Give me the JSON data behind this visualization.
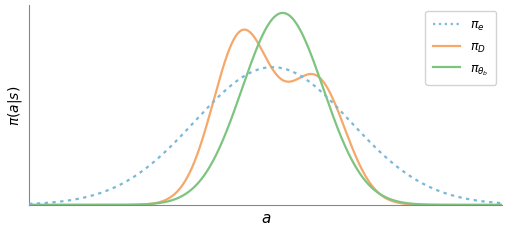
{
  "xlabel": "$a$",
  "ylabel": "$\\pi(a|s)$",
  "xlim": [
    -6,
    8
  ],
  "ylim": [
    0,
    0.48
  ],
  "legend_labels": [
    "$\\pi_e$",
    "$\\pi_D$",
    "$\\pi_{\\theta_b}$"
  ],
  "colors": {
    "pi_e": "#7ab8d9",
    "pi_D": "#f5a86a",
    "pi_theta": "#7dc47e"
  },
  "background_color": "#ffffff",
  "pi_e": {
    "mean": 1.2,
    "std": 2.3,
    "peak": 0.33
  },
  "pi_D": {
    "components": [
      {
        "mean": 0.3,
        "std": 0.85,
        "weight": 0.58
      },
      {
        "mean": 2.5,
        "std": 0.85,
        "weight": 0.42
      }
    ],
    "peak": 0.42
  },
  "pi_theta": {
    "mean": 1.5,
    "std": 1.2,
    "peak": 0.46
  }
}
